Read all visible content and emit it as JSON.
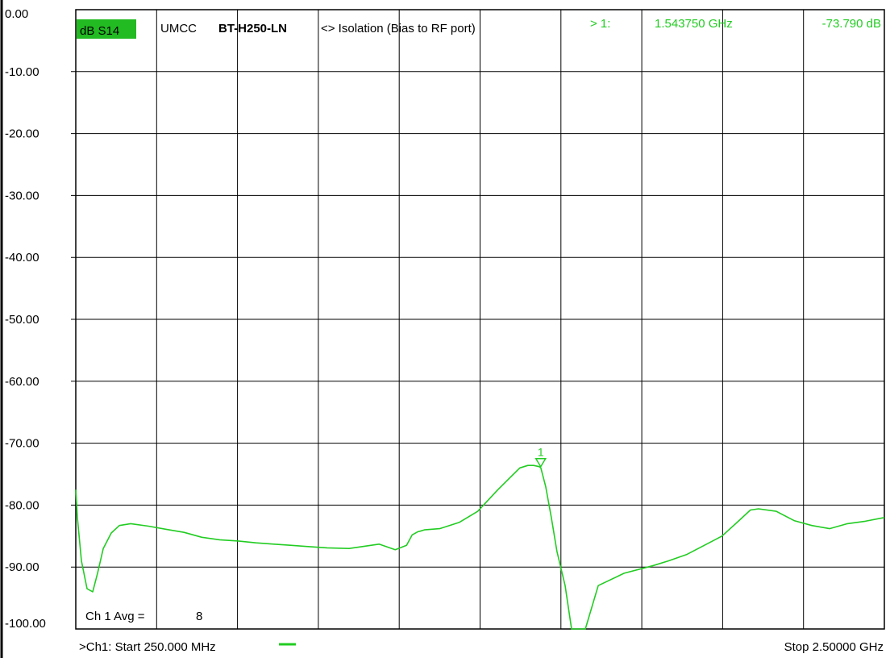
{
  "header": {
    "trace_format": "dB S14",
    "manufacturer": "UMCC",
    "model": "BT-H250-LN",
    "description": "<> Isolation (Bias to RF port)",
    "marker_label": "> 1:",
    "marker_freq": "1.543750 GHz",
    "marker_value": "-73.790 dB"
  },
  "footer": {
    "start": ">Ch1: Start  250.000 MHz",
    "stop": "Stop  2.50000 GHz",
    "avg_label": "Ch 1 Avg =",
    "avg_value": "8"
  },
  "marker": {
    "number": "1",
    "freq_ghz": 1.54375,
    "value_db": -73.79
  },
  "colors": {
    "trace": "#22cc22",
    "badge": "#22bb22",
    "grid": "#000000",
    "background": "#ffffff"
  },
  "chart_data": {
    "type": "line",
    "xlim": [
      0.25,
      2.5
    ],
    "ylim": [
      -100,
      0
    ],
    "x_divisions": 10,
    "grid": true,
    "y_ticks": [
      "0.00",
      "-10.00",
      "-20.00",
      "-30.00",
      "-40.00",
      "-50.00",
      "-60.00",
      "-70.00",
      "-80.00",
      "-90.00",
      "-100.00"
    ],
    "series": [
      {
        "x": [
          0.25,
          0.2544,
          0.2657,
          0.2814,
          0.2971,
          0.3106,
          0.3264,
          0.3488,
          0.3713,
          0.4027,
          0.4523,
          0.5018,
          0.5513,
          0.6009,
          0.6504,
          0.7022,
          0.7517,
          0.8013,
          0.8508,
          0.9003,
          0.9499,
          1.0106,
          1.0939,
          1.1389,
          1.1704,
          1.1862,
          1.2019,
          1.2086,
          1.2199,
          1.2627,
          1.3167,
          1.3685,
          1.4248,
          1.4856,
          1.5081,
          1.5239,
          1.5396,
          1.5441,
          1.5576,
          1.5734,
          1.5891,
          1.6116,
          1.6296,
          1.6454,
          1.6679,
          1.7039,
          1.7759,
          1.8547,
          1.8997,
          1.9492,
          1.9988,
          2.0483,
          2.0956,
          2.1271,
          2.1496,
          2.1991,
          2.2487,
          2.2982,
          2.3477,
          2.3973,
          2.4468,
          2.5
        ],
        "y": [
          -77.5,
          -82.0,
          -89.0,
          -93.5,
          -94.0,
          -91.0,
          -87.0,
          -84.5,
          -83.3,
          -83.0,
          -83.4,
          -83.9,
          -84.4,
          -85.2,
          -85.6,
          -85.8,
          -86.1,
          -86.3,
          -86.5,
          -86.7,
          -86.9,
          -87.0,
          -86.3,
          -87.2,
          -86.5,
          -84.8,
          -84.3,
          -84.2,
          -84.0,
          -83.8,
          -82.8,
          -81.0,
          -77.5,
          -74.0,
          -73.6,
          -73.6,
          -73.79,
          -74.0,
          -77.0,
          -82.0,
          -87.5,
          -93.0,
          -100.0,
          -100.0,
          -100.0,
          -93.0,
          -91.0,
          -89.8,
          -89.0,
          -88.0,
          -86.5,
          -85.0,
          -82.5,
          -80.8,
          -80.6,
          -81.0,
          -82.5,
          -83.3,
          -83.8,
          -83.0,
          -82.6,
          -82.0
        ]
      }
    ]
  }
}
